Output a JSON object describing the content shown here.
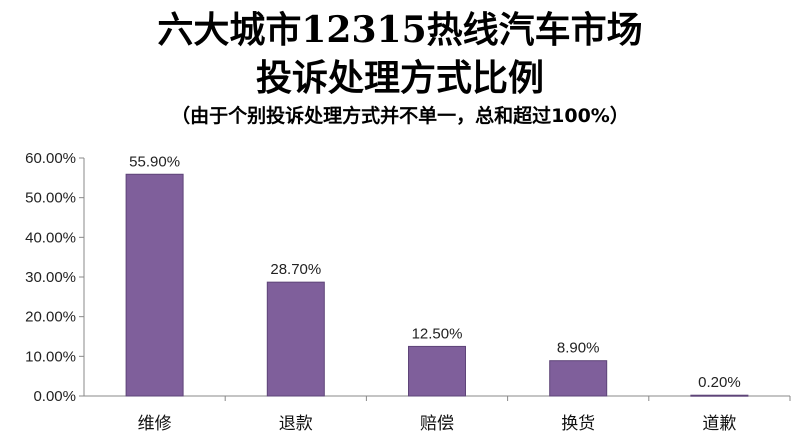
{
  "chart_data": {
    "type": "bar",
    "title_line1": "六大城市12315热线汽车市场",
    "title_line2": "投诉处理方式比例",
    "subtitle": "（由于个别投诉处理方式并不单一，总和超过100%）",
    "categories": [
      "维修",
      "退款",
      "赔偿",
      "换货",
      "道歉"
    ],
    "values": [
      55.9,
      28.7,
      12.5,
      8.9,
      0.2
    ],
    "data_labels": [
      "55.90%",
      "28.70%",
      "12.50%",
      "8.90%",
      "0.20%"
    ],
    "ylim": [
      0,
      60
    ],
    "yticks": [
      0,
      10,
      20,
      30,
      40,
      50,
      60
    ],
    "ytick_labels": [
      "0.00%",
      "10.00%",
      "20.00%",
      "30.00%",
      "40.00%",
      "50.00%",
      "60.00%"
    ],
    "grid": false,
    "bar_color": "#7F5F9B",
    "bar_edge_color": "#5E4478"
  }
}
